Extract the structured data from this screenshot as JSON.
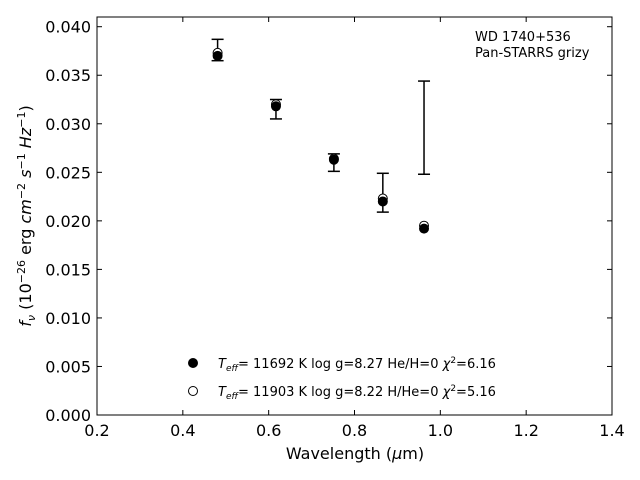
{
  "chart_data": {
    "type": "scatter",
    "xlabel": "Wavelength (μm)",
    "ylabel": "f_ν (10^−26 erg cm^−2 s^−1 Hz^−1)",
    "xlim": [
      0.2,
      1.4
    ],
    "ylim": [
      0.0,
      0.041
    ],
    "x_ticks": [
      "0.2",
      "0.4",
      "0.6",
      "0.8",
      "1.0",
      "1.2",
      "1.4"
    ],
    "y_ticks": [
      "0.000",
      "0.005",
      "0.010",
      "0.015",
      "0.020",
      "0.025",
      "0.030",
      "0.035",
      "0.040"
    ],
    "grid": false,
    "legend_position": "bottom-center",
    "annotations": [
      "WD 1740+536",
      "Pan-STARRS grizy"
    ],
    "observed": {
      "x": [
        0.481,
        0.617,
        0.752,
        0.866,
        0.962
      ],
      "y": [
        0.0376,
        0.0315,
        0.026,
        0.0229,
        0.0296
      ],
      "yerr": [
        0.0011,
        0.001,
        0.0009,
        0.002,
        0.0048
      ]
    },
    "series": [
      {
        "name": "T_eff= 11692 K  log g=8.27  He/H=0  χ²=6.16",
        "legend": {
          "teff": "11692",
          "logg": "8.27",
          "comp": "He/H=0",
          "chi2": "6.16"
        },
        "marker": "filled",
        "x": [
          0.481,
          0.617,
          0.752,
          0.866,
          0.962
        ],
        "y": [
          0.037,
          0.0318,
          0.0263,
          0.022,
          0.0192
        ]
      },
      {
        "name": "T_eff= 11903 K  log g=8.22  H/He=0  χ²=5.16",
        "legend": {
          "teff": "11903",
          "logg": "8.22",
          "comp": "H/He=0",
          "chi2": "5.16"
        },
        "marker": "open",
        "x": [
          0.481,
          0.617,
          0.752,
          0.866,
          0.962
        ],
        "y": [
          0.0373,
          0.032,
          0.0264,
          0.0223,
          0.0195
        ]
      }
    ]
  }
}
